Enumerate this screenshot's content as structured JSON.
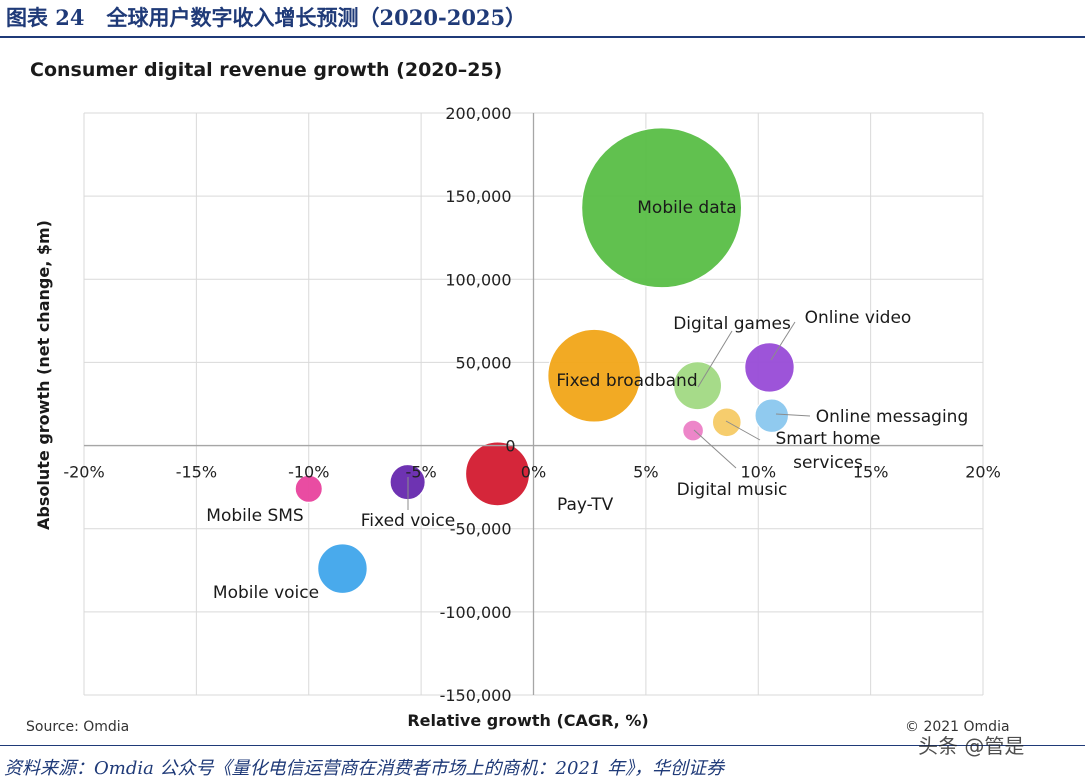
{
  "figure": {
    "number": "图表 24",
    "title": "全球用户数字收入增长预测（2020-2025）"
  },
  "footer": {
    "source": "资料来源：Omdia 公众号《量化电信运营商在消费者市场上的商机：2021 年》，华创证券",
    "watermark": "头条 @管是"
  },
  "chart_data": {
    "type": "bubble",
    "title": "Consumer digital revenue growth (2020–25)",
    "xlabel": "Relative growth (CAGR, %)",
    "ylabel": "Absolute growth (net change, $m)",
    "xlim": [
      -20,
      20
    ],
    "ylim": [
      -150000,
      200000
    ],
    "x_ticks": [
      -20,
      -15,
      -10,
      -5,
      0,
      5,
      10,
      15,
      20
    ],
    "x_tick_labels": [
      "-20%",
      "-15%",
      "-10%",
      "-5%",
      "0%",
      "5%",
      "10%",
      "15%",
      "20%"
    ],
    "y_ticks": [
      200000,
      150000,
      100000,
      50000,
      0,
      -50000,
      -100000,
      -150000
    ],
    "y_tick_labels": [
      "200,000",
      "150,000",
      "100,000",
      "50,000",
      "0",
      "-50,000",
      "-100,000",
      "-150,000"
    ],
    "grid": true,
    "source_note": "Source: Omdia",
    "copyright": "© 2021 Omdia",
    "series": [
      {
        "name": "Mobile data",
        "x": 5.7,
        "y": 143000,
        "size": 100,
        "color": "#5cbf4a"
      },
      {
        "name": "Fixed broadband",
        "x": 2.7,
        "y": 42000,
        "size": 58,
        "color": "#f2a81d"
      },
      {
        "name": "Pay-TV",
        "x": -1.6,
        "y": -17000,
        "size": 40,
        "color": "#d42034"
      },
      {
        "name": "Mobile voice",
        "x": -8.5,
        "y": -74000,
        "size": 31,
        "color": "#44a8ec"
      },
      {
        "name": "Fixed voice",
        "x": -5.6,
        "y": -22000,
        "size": 22,
        "color": "#6a2db0"
      },
      {
        "name": "Mobile SMS",
        "x": -10.0,
        "y": -26000,
        "size": 17,
        "color": "#e9479f"
      },
      {
        "name": "Digital games",
        "x": 7.3,
        "y": 36000,
        "size": 30,
        "color": "#a4da86"
      },
      {
        "name": "Online video",
        "x": 10.5,
        "y": 47000,
        "size": 31,
        "color": "#9a4fd8"
      },
      {
        "name": "Online messaging",
        "x": 10.6,
        "y": 18000,
        "size": 21,
        "color": "#8dc9ef"
      },
      {
        "name": "Smart home services",
        "x": 8.6,
        "y": 14000,
        "size": 18,
        "color": "#f6cc69"
      },
      {
        "name": "Digital music",
        "x": 7.1,
        "y": 9000,
        "size": 13,
        "color": "#ed83c8"
      }
    ],
    "bubble_labels": [
      "Mobile data",
      "Fixed broadband",
      "Pay-TV",
      "Mobile voice",
      "Fixed voice",
      "Mobile SMS",
      "Digital games",
      "Online video",
      "Online messaging",
      "Smart home",
      "services",
      "Digital music"
    ]
  }
}
